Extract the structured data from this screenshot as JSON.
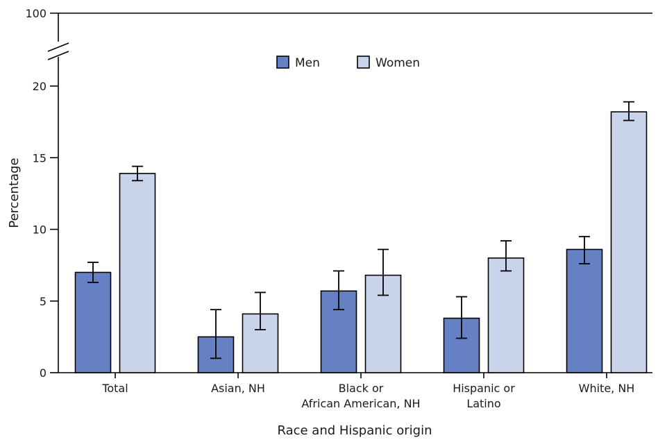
{
  "chart_data": {
    "type": "bar",
    "title": "",
    "xlabel": "Race and Hispanic origin",
    "ylabel": "Percentage",
    "ylim": [
      0,
      20
    ],
    "axis_break": true,
    "y_ticks": [
      "0",
      "5",
      "10",
      "15",
      "20",
      "100"
    ],
    "categories": [
      [
        "Total"
      ],
      [
        "Asian, NH"
      ],
      [
        "Black or",
        "African American, NH"
      ],
      [
        "Hispanic or",
        "Latino"
      ],
      [
        "White, NH"
      ]
    ],
    "series": [
      {
        "name": "Men",
        "color": "#6581c3",
        "values": [
          7.0,
          2.5,
          5.7,
          3.8,
          8.6
        ],
        "ci_low": [
          6.3,
          1.0,
          4.4,
          2.4,
          7.6
        ],
        "ci_high": [
          7.7,
          4.4,
          7.1,
          5.3,
          9.5
        ]
      },
      {
        "name": "Women",
        "color": "#c9d3ea",
        "values": [
          13.9,
          4.1,
          6.8,
          8.0,
          18.2
        ],
        "ci_low": [
          13.4,
          3.0,
          5.4,
          7.1,
          17.6
        ],
        "ci_high": [
          14.4,
          5.6,
          8.6,
          9.2,
          18.9
        ]
      }
    ],
    "legend": {
      "placement": "top-center"
    },
    "grid": false,
    "error_bars": "95% confidence intervals"
  }
}
